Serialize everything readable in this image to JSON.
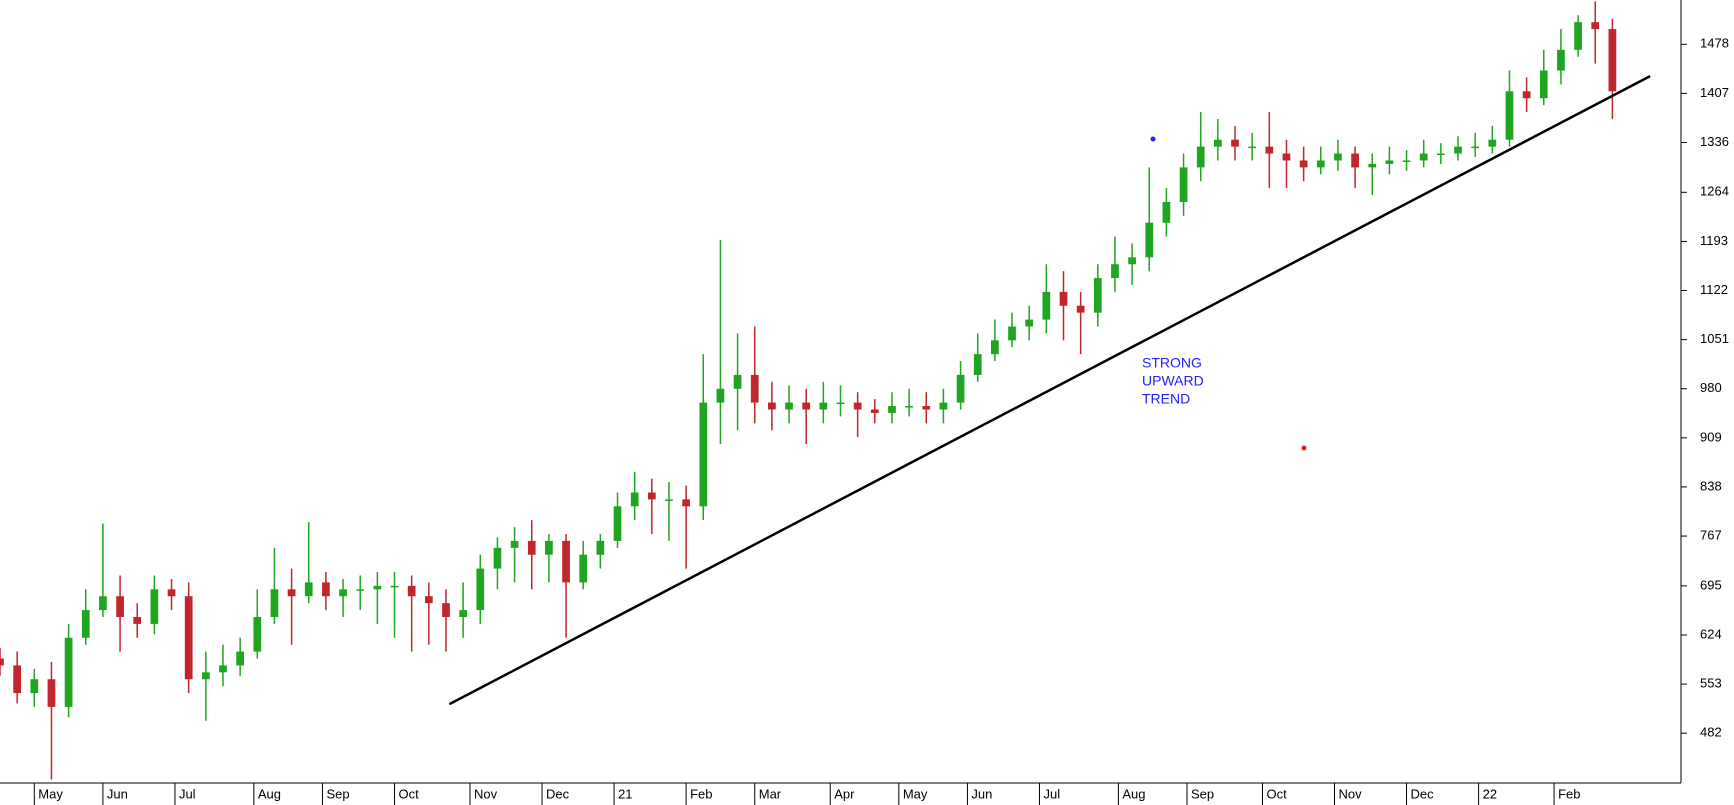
{
  "chart_data": {
    "type": "candlestick",
    "up_color": "#1fa51f",
    "down_color": "#c0262b",
    "xlim": [
      0,
      490
    ],
    "ylim": [
      410,
      1542
    ],
    "yticks": [
      482,
      553,
      624,
      695,
      767,
      838,
      909,
      980,
      1051,
      1122,
      1193,
      1264,
      1336,
      1407,
      1478
    ],
    "xticks": [
      {
        "value": 10,
        "label": "May"
      },
      {
        "value": 30,
        "label": "Jun"
      },
      {
        "value": 51,
        "label": "Jul"
      },
      {
        "value": 74,
        "label": "Aug"
      },
      {
        "value": 94,
        "label": "Sep"
      },
      {
        "value": 115,
        "label": "Oct"
      },
      {
        "value": 137,
        "label": "Nov"
      },
      {
        "value": 158,
        "label": "Dec"
      },
      {
        "value": 179,
        "label": "21"
      },
      {
        "value": 200,
        "label": "Feb"
      },
      {
        "value": 220,
        "label": "Mar"
      },
      {
        "value": 242,
        "label": "Apr"
      },
      {
        "value": 262,
        "label": "May"
      },
      {
        "value": 282,
        "label": "Jun"
      },
      {
        "value": 303,
        "label": "Jul"
      },
      {
        "value": 326,
        "label": "Aug"
      },
      {
        "value": 346,
        "label": "Sep"
      },
      {
        "value": 368,
        "label": "Oct"
      },
      {
        "value": 389,
        "label": "Nov"
      },
      {
        "value": 410,
        "label": "Dec"
      },
      {
        "value": 431,
        "label": "22"
      },
      {
        "value": 453,
        "label": "Feb"
      }
    ],
    "x": [
      0,
      5,
      10,
      15,
      20,
      25,
      30,
      35,
      40,
      45,
      50,
      55,
      60,
      65,
      70,
      75,
      80,
      85,
      90,
      95,
      100,
      105,
      110,
      115,
      120,
      125,
      130,
      135,
      140,
      145,
      150,
      155,
      160,
      165,
      170,
      175,
      180,
      185,
      190,
      195,
      200,
      205,
      210,
      215,
      220,
      225,
      230,
      235,
      240,
      245,
      250,
      255,
      260,
      265,
      270,
      275,
      280,
      285,
      290,
      295,
      300,
      305,
      310,
      315,
      320,
      325,
      330,
      335,
      340,
      345,
      350,
      355,
      360,
      365,
      370,
      375,
      380,
      385,
      390,
      395,
      400,
      405,
      410,
      415,
      420,
      425,
      430,
      435,
      440,
      445,
      450,
      455,
      460,
      465,
      470
    ],
    "open": [
      590,
      580,
      540,
      560,
      520,
      620,
      660,
      680,
      650,
      640,
      690,
      680,
      560,
      570,
      580,
      600,
      650,
      690,
      680,
      700,
      680,
      690,
      690,
      695,
      695,
      680,
      670,
      650,
      660,
      720,
      750,
      760,
      740,
      760,
      700,
      740,
      760,
      810,
      830,
      820,
      820,
      810,
      960,
      980,
      1000,
      960,
      950,
      960,
      950,
      960,
      960,
      950,
      945,
      955,
      955,
      950,
      960,
      1000,
      1030,
      1050,
      1070,
      1080,
      1120,
      1100,
      1090,
      1140,
      1160,
      1170,
      1220,
      1250,
      1300,
      1330,
      1340,
      1330,
      1330,
      1320,
      1310,
      1300,
      1310,
      1320,
      1300,
      1305,
      1310,
      1310,
      1320,
      1320,
      1330,
      1330,
      1340,
      1410,
      1400,
      1440,
      1470,
      1510,
      1500
    ],
    "high": [
      605,
      600,
      575,
      585,
      640,
      690,
      785,
      710,
      670,
      710,
      705,
      700,
      600,
      610,
      620,
      690,
      750,
      720,
      787,
      715,
      705,
      710,
      715,
      715,
      710,
      700,
      690,
      700,
      740,
      765,
      780,
      790,
      770,
      770,
      760,
      770,
      830,
      860,
      850,
      845,
      840,
      1030,
      1195,
      1060,
      1070,
      990,
      985,
      980,
      990,
      985,
      975,
      965,
      975,
      980,
      975,
      980,
      1020,
      1060,
      1080,
      1090,
      1100,
      1160,
      1150,
      1120,
      1160,
      1200,
      1190,
      1300,
      1270,
      1320,
      1380,
      1370,
      1360,
      1350,
      1380,
      1340,
      1330,
      1330,
      1340,
      1330,
      1320,
      1330,
      1325,
      1340,
      1335,
      1345,
      1350,
      1360,
      1440,
      1430,
      1470,
      1500,
      1520,
      1540,
      1515
    ],
    "low": [
      565,
      525,
      520,
      415,
      505,
      610,
      650,
      600,
      620,
      625,
      660,
      540,
      500,
      550,
      565,
      590,
      640,
      610,
      670,
      660,
      650,
      660,
      640,
      620,
      600,
      610,
      600,
      620,
      640,
      690,
      700,
      690,
      700,
      620,
      690,
      720,
      750,
      790,
      770,
      760,
      720,
      790,
      900,
      920,
      930,
      920,
      930,
      900,
      930,
      940,
      910,
      930,
      930,
      940,
      930,
      930,
      950,
      990,
      1020,
      1040,
      1050,
      1060,
      1050,
      1030,
      1070,
      1120,
      1130,
      1150,
      1200,
      1230,
      1280,
      1310,
      1310,
      1310,
      1270,
      1270,
      1280,
      1290,
      1295,
      1270,
      1260,
      1290,
      1295,
      1300,
      1305,
      1310,
      1315,
      1320,
      1330,
      1380,
      1390,
      1420,
      1460,
      1450,
      1370
    ],
    "close": [
      580,
      540,
      560,
      520,
      620,
      660,
      680,
      650,
      640,
      690,
      680,
      560,
      570,
      580,
      600,
      650,
      690,
      680,
      700,
      680,
      690,
      690,
      695,
      695,
      680,
      670,
      650,
      660,
      720,
      750,
      760,
      740,
      760,
      700,
      740,
      760,
      810,
      830,
      820,
      820,
      810,
      960,
      980,
      1000,
      960,
      950,
      960,
      950,
      960,
      960,
      950,
      945,
      955,
      955,
      950,
      960,
      1000,
      1030,
      1050,
      1070,
      1080,
      1120,
      1100,
      1090,
      1140,
      1160,
      1170,
      1220,
      1250,
      1300,
      1330,
      1340,
      1330,
      1330,
      1320,
      1310,
      1300,
      1310,
      1320,
      1300,
      1305,
      1310,
      1310,
      1320,
      1320,
      1330,
      1330,
      1340,
      1410,
      1400,
      1440,
      1470,
      1510,
      1500,
      1410
    ],
    "trendline": {
      "x": [
        131,
        481
      ],
      "y": [
        524,
        1432
      ],
      "color": "#000000"
    },
    "annotation": [
      "STRONG",
      "UPWARD",
      "TREND"
    ]
  }
}
